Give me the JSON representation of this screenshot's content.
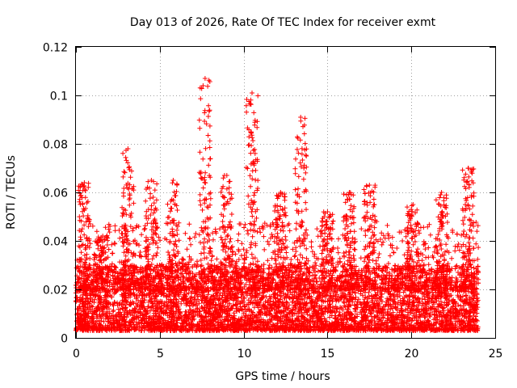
{
  "chart_data": {
    "type": "scatter",
    "title": "Day 013 of 2026, Rate Of TEC Index for receiver exmt",
    "xlabel": "GPS time / hours",
    "ylabel": "ROTI / TECUs",
    "xlim": [
      0,
      25
    ],
    "ylim": [
      0,
      0.12
    ],
    "xticks": [
      0,
      5,
      10,
      15,
      20,
      25
    ],
    "yticks": [
      0,
      0.02,
      0.04,
      0.06,
      0.08,
      0.1,
      0.12
    ],
    "xtick_labels": [
      "0",
      "5",
      "10",
      "15",
      "20",
      "25"
    ],
    "ytick_labels": [
      "0",
      "0.02",
      "0.04",
      "0.06",
      "0.08",
      "0.1",
      "0.12"
    ],
    "grid": true,
    "marker": "+",
    "series_color": "#ff0000",
    "x_data_range": [
      0,
      24
    ],
    "dense_band": [
      0.003,
      0.03
    ],
    "peaks": [
      {
        "x": 0.5,
        "y": 0.064
      },
      {
        "x": 1.6,
        "y": 0.042
      },
      {
        "x": 3.1,
        "y": 0.078
      },
      {
        "x": 4.5,
        "y": 0.065
      },
      {
        "x": 5.8,
        "y": 0.065
      },
      {
        "x": 7.7,
        "y": 0.107
      },
      {
        "x": 9.0,
        "y": 0.067
      },
      {
        "x": 10.5,
        "y": 0.101
      },
      {
        "x": 12.2,
        "y": 0.06
      },
      {
        "x": 13.4,
        "y": 0.091
      },
      {
        "x": 15.0,
        "y": 0.052
      },
      {
        "x": 16.3,
        "y": 0.06
      },
      {
        "x": 17.5,
        "y": 0.063
      },
      {
        "x": 20.1,
        "y": 0.055
      },
      {
        "x": 21.8,
        "y": 0.06
      },
      {
        "x": 23.4,
        "y": 0.07
      }
    ]
  }
}
